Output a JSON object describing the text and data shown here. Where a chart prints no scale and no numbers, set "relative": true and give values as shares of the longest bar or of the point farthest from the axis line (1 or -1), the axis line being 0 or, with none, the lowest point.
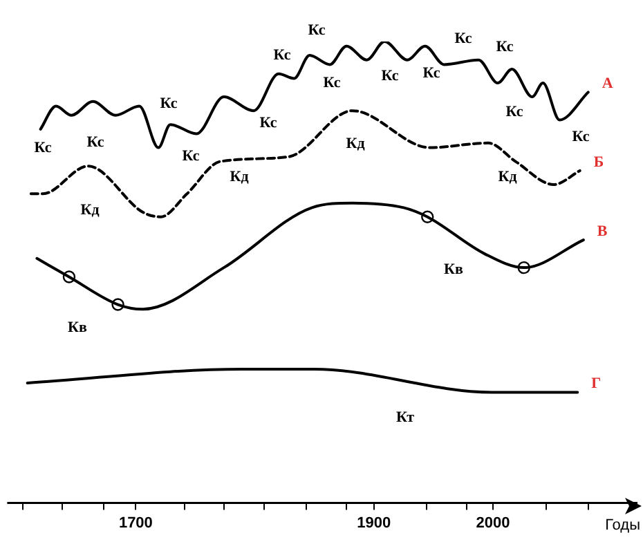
{
  "chart_data": {
    "type": "line",
    "relative": true,
    "xlabel": "Годы",
    "xlim": [
      1592,
      2120
    ],
    "xticks": [
      {
        "value": 1605,
        "label": null
      },
      {
        "value": 1638,
        "label": null
      },
      {
        "value": 1673,
        "label": null
      },
      1700,
      {
        "value": 1741,
        "label": null
      },
      {
        "value": 1774,
        "label": null
      },
      {
        "value": 1808,
        "label": null
      },
      {
        "value": 1843,
        "label": null
      },
      {
        "value": 1877,
        "label": null
      },
      1900,
      {
        "value": 1944,
        "label": null
      },
      {
        "value": 1978,
        "label": null
      },
      2000,
      {
        "value": 2045,
        "label": null
      },
      {
        "value": 2080,
        "label": null
      }
    ],
    "tick_labels": "x",
    "grid": false,
    "legend": false,
    "annotations": [
      "Кс",
      "Кс",
      "Кс",
      "Кс",
      "Кс",
      "Кс",
      "Кс",
      "Кс",
      "Кс",
      "Кс",
      "Кс",
      "Кс",
      "Кс",
      "Кс",
      "Кд",
      "Кд",
      "Кд",
      "Кд",
      "Кв",
      "Кв",
      "Кт"
    ],
    "series": [
      {
        "name": "А",
        "color": "#000000",
        "line_style": "solid",
        "marker": "none",
        "x": [
          1620,
          1633,
          1646,
          1664,
          1683,
          1703,
          1719,
          1729,
          1751,
          1774,
          1799,
          1820,
          1833,
          1846,
          1863,
          1877,
          1894,
          1909,
          1928,
          1943,
          1959,
          1988,
          2004,
          2016,
          2033,
          2042,
          2056,
          2080
        ],
        "values": [
          0.81,
          0.86,
          0.84,
          0.87,
          0.84,
          0.86,
          0.77,
          0.82,
          0.8,
          0.88,
          0.85,
          0.93,
          0.92,
          0.97,
          0.95,
          0.99,
          0.96,
          1.0,
          0.96,
          0.99,
          0.95,
          0.96,
          0.91,
          0.94,
          0.88,
          0.91,
          0.83,
          0.89
        ]
      },
      {
        "name": "Б",
        "color": "#000000",
        "line_style": "dashed",
        "marker": "none",
        "x": [
          1612,
          1622,
          1660,
          1706,
          1721,
          1743,
          1771,
          1828,
          1882,
          1947,
          1996,
          2019,
          2051,
          2073
        ],
        "values": [
          0.67,
          0.67,
          0.73,
          0.63,
          0.62,
          0.67,
          0.74,
          0.75,
          0.85,
          0.77,
          0.78,
          0.74,
          0.69,
          0.72
        ]
      },
      {
        "name": "В",
        "color": "#000000",
        "line_style": "solid",
        "marker": "none",
        "x": [
          1617,
          1644,
          1685,
          1706,
          1774,
          1848,
          1882,
          1925,
          1945,
          1993,
          2026,
          2076
        ],
        "values": [
          0.53,
          0.49,
          0.43,
          0.42,
          0.51,
          0.64,
          0.65,
          0.64,
          0.62,
          0.54,
          0.51,
          0.57
        ]
      },
      {
        "type": "scatter",
        "color": "#000000",
        "marker": "circle",
        "x": [
          1644,
          1685,
          1945,
          2026
        ],
        "values": [
          0.49,
          0.43,
          0.62,
          0.51
        ]
      },
      {
        "name": "Г",
        "color": "#000000",
        "line_style": "solid",
        "marker": "none",
        "x": [
          1609,
          1789,
          1850,
          1999,
          2071
        ],
        "values": [
          0.26,
          0.29,
          0.29,
          0.24,
          0.24
        ]
      }
    ]
  }
}
